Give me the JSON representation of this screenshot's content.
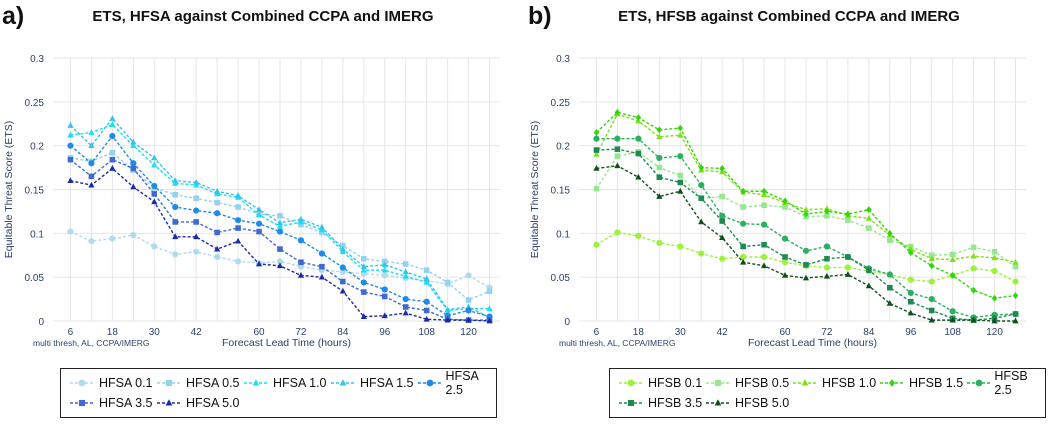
{
  "chart_data": [
    {
      "id": "a",
      "panel_label": "a)",
      "type": "line",
      "title": "ETS, HFSA against Combined CCPA and IMERG",
      "xlabel": "Forecast Lead Time (hours)",
      "ylabel": "Equitable Threat Score (ETS)",
      "footnote": "multi thresh, AL, CCPA/IMERG",
      "grid": true,
      "legend_position": "bottom",
      "xlim": [
        1,
        129
      ],
      "ylim": [
        0,
        0.3
      ],
      "x_ticks": [
        6,
        18,
        30,
        42,
        60,
        72,
        84,
        96,
        108,
        120
      ],
      "y_ticks": [
        0,
        0.05,
        0.1,
        0.15,
        0.2,
        0.25,
        0.3
      ],
      "y_tick_labels": [
        "0",
        "0.05",
        "0.1",
        "0.15",
        "0.2",
        "0.25",
        "0.3"
      ],
      "x": [
        6,
        12,
        18,
        24,
        30,
        36,
        42,
        48,
        54,
        60,
        66,
        72,
        78,
        84,
        90,
        96,
        102,
        108,
        114,
        120,
        126
      ],
      "series": [
        {
          "name": "HFSA 0.1",
          "color": "#b0dbef",
          "marker": "circle",
          "values": [
            0.102,
            0.091,
            0.094,
            0.098,
            0.085,
            0.076,
            0.079,
            0.073,
            0.068,
            0.066,
            0.068,
            0.062,
            0.058,
            0.056,
            0.054,
            0.052,
            0.049,
            0.046,
            0.042,
            0.052,
            0.038
          ]
        },
        {
          "name": "HFSA 0.5",
          "color": "#93d3ef",
          "marker": "square",
          "values": [
            0.186,
            0.182,
            0.192,
            0.172,
            0.152,
            0.144,
            0.14,
            0.135,
            0.13,
            0.122,
            0.12,
            0.11,
            0.101,
            0.086,
            0.071,
            0.068,
            0.065,
            0.058,
            0.044,
            0.024,
            0.034
          ]
        },
        {
          "name": "HFSA 1.0",
          "color": "#18dff5",
          "marker": "triangle",
          "values": [
            0.212,
            0.215,
            0.224,
            0.2,
            0.178,
            0.157,
            0.155,
            0.145,
            0.141,
            0.121,
            0.108,
            0.113,
            0.104,
            0.079,
            0.058,
            0.058,
            0.051,
            0.044,
            0.012,
            0.014,
            0.014
          ]
        },
        {
          "name": "HFSA 1.5",
          "color": "#35c3ee",
          "marker": "triangle",
          "values": [
            0.223,
            0.2,
            0.231,
            0.204,
            0.186,
            0.16,
            0.158,
            0.148,
            0.143,
            0.127,
            0.112,
            0.116,
            0.107,
            0.082,
            0.062,
            0.064,
            0.056,
            0.048,
            0.013,
            0.016,
            0.004
          ]
        },
        {
          "name": "HFSA 2.5",
          "color": "#1e8be8",
          "marker": "circle",
          "values": [
            0.2,
            0.18,
            0.211,
            0.18,
            0.154,
            0.13,
            0.126,
            0.123,
            0.115,
            0.111,
            0.102,
            0.092,
            0.077,
            0.061,
            0.044,
            0.036,
            0.025,
            0.022,
            0.006,
            0.012,
            0.005
          ]
        },
        {
          "name": "HFSA 3.5",
          "color": "#3f6bd1",
          "marker": "square",
          "values": [
            0.184,
            0.165,
            0.184,
            0.174,
            0.145,
            0.113,
            0.113,
            0.101,
            0.106,
            0.102,
            0.082,
            0.067,
            0.062,
            0.045,
            0.033,
            0.028,
            0.016,
            0.012,
            0.002,
            0.001,
            0.001
          ]
        },
        {
          "name": "HFSA 5.0",
          "color": "#1a2aa8",
          "marker": "triangle",
          "values": [
            0.16,
            0.155,
            0.174,
            0.153,
            0.136,
            0.096,
            0.096,
            0.082,
            0.091,
            0.065,
            0.063,
            0.052,
            0.05,
            0.034,
            0.005,
            0.006,
            0.009,
            0.002,
            0.001,
            0.001,
            0.0
          ]
        }
      ]
    },
    {
      "id": "b",
      "panel_label": "b)",
      "type": "line",
      "title": "ETS, HFSB against Combined CCPA and IMERG",
      "xlabel": "Forecast Lead Time (hours)",
      "ylabel": "Equitable Threat Score (ETS)",
      "footnote": "multi thresh, AL, CCPA/IMERG",
      "grid": true,
      "legend_position": "bottom",
      "xlim": [
        1,
        129
      ],
      "ylim": [
        0,
        0.3
      ],
      "x_ticks": [
        6,
        18,
        30,
        42,
        60,
        72,
        84,
        96,
        108,
        120
      ],
      "y_ticks": [
        0,
        0.05,
        0.1,
        0.15,
        0.2,
        0.25,
        0.3
      ],
      "y_tick_labels": [
        "0",
        "0.05",
        "0.1",
        "0.15",
        "0.2",
        "0.25",
        "0.3"
      ],
      "x": [
        6,
        12,
        18,
        24,
        30,
        36,
        42,
        48,
        54,
        60,
        66,
        72,
        78,
        84,
        90,
        96,
        102,
        108,
        114,
        120,
        126
      ],
      "series": [
        {
          "name": "HFSB 0.1",
          "color": "#9cf23c",
          "marker": "circle",
          "values": [
            0.087,
            0.101,
            0.097,
            0.089,
            0.085,
            0.077,
            0.071,
            0.073,
            0.073,
            0.067,
            0.063,
            0.061,
            0.061,
            0.057,
            0.053,
            0.047,
            0.045,
            0.052,
            0.06,
            0.057,
            0.045
          ]
        },
        {
          "name": "HFSB 0.5",
          "color": "#96e890",
          "marker": "square",
          "values": [
            0.151,
            0.188,
            0.193,
            0.175,
            0.166,
            0.14,
            0.142,
            0.13,
            0.132,
            0.13,
            0.119,
            0.12,
            0.115,
            0.106,
            0.092,
            0.085,
            0.075,
            0.076,
            0.084,
            0.079,
            0.062
          ]
        },
        {
          "name": "HFSB 1.0",
          "color": "#7de018",
          "marker": "triangle",
          "values": [
            0.19,
            0.236,
            0.228,
            0.21,
            0.212,
            0.172,
            0.17,
            0.147,
            0.144,
            0.135,
            0.127,
            0.128,
            0.12,
            0.117,
            0.098,
            0.082,
            0.071,
            0.07,
            0.074,
            0.072,
            0.067
          ]
        },
        {
          "name": "HFSB 1.5",
          "color": "#33d60c",
          "marker": "diamond",
          "values": [
            0.215,
            0.238,
            0.232,
            0.218,
            0.22,
            0.175,
            0.174,
            0.148,
            0.148,
            0.137,
            0.122,
            0.125,
            0.122,
            0.127,
            0.1,
            0.078,
            0.063,
            0.052,
            0.035,
            0.026,
            0.029
          ]
        },
        {
          "name": "HFSB 2.5",
          "color": "#2bb060",
          "marker": "circle",
          "values": [
            0.208,
            0.208,
            0.208,
            0.186,
            0.188,
            0.155,
            0.12,
            0.111,
            0.11,
            0.094,
            0.08,
            0.085,
            0.073,
            0.06,
            0.053,
            0.032,
            0.025,
            0.011,
            0.004,
            0.007,
            0.008
          ]
        },
        {
          "name": "HFSB 3.5",
          "color": "#1e8a52",
          "marker": "square",
          "values": [
            0.195,
            0.196,
            0.191,
            0.164,
            0.158,
            0.14,
            0.114,
            0.085,
            0.087,
            0.073,
            0.064,
            0.071,
            0.073,
            0.058,
            0.038,
            0.022,
            0.012,
            0.003,
            0.001,
            0.003,
            0.008
          ]
        },
        {
          "name": "HFSB 5.0",
          "color": "#0f4f1c",
          "marker": "triangle",
          "values": [
            0.174,
            0.177,
            0.164,
            0.142,
            0.148,
            0.113,
            0.095,
            0.067,
            0.063,
            0.052,
            0.049,
            0.051,
            0.053,
            0.04,
            0.02,
            0.009,
            0.001,
            0.001,
            0.001,
            0.0,
            0.0
          ]
        }
      ]
    }
  ]
}
